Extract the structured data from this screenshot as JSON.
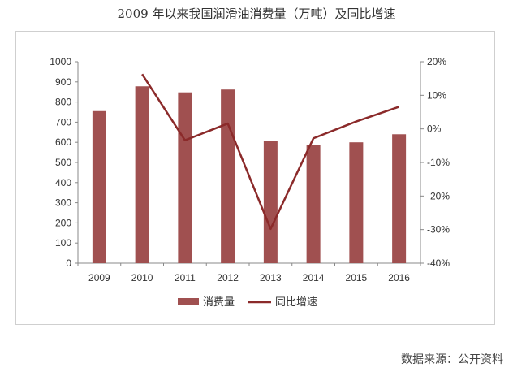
{
  "title": "2009 年以来我国润滑油消费量（万吨）及同比增速",
  "source": "数据来源：公开资料",
  "chart_data": {
    "type": "bar",
    "title": "2009 年以来我国润滑油消费量（万吨）及同比增速",
    "categories": [
      "2009",
      "2010",
      "2011",
      "2012",
      "2013",
      "2014",
      "2015",
      "2016"
    ],
    "series": [
      {
        "name": "消费量",
        "type": "bar",
        "axis": "left",
        "color": "#a05050",
        "values": [
          755,
          878,
          848,
          862,
          605,
          588,
          600,
          640
        ]
      },
      {
        "name": "同比增速",
        "type": "line",
        "axis": "right",
        "color": "#8b2a2a",
        "values": [
          null,
          16.3,
          -3.4,
          1.6,
          -29.8,
          -2.8,
          2.2,
          6.6
        ]
      }
    ],
    "ylim_left": [
      0,
      1000
    ],
    "yticks_left": [
      0,
      100,
      200,
      300,
      400,
      500,
      600,
      700,
      800,
      900,
      1000
    ],
    "ylim_right": [
      -40,
      20
    ],
    "yticks_right": [
      "20%",
      "10%",
      "0%",
      "-10%",
      "-20%",
      "-30%",
      "-40%"
    ],
    "grid": false,
    "legend": "bottom"
  }
}
